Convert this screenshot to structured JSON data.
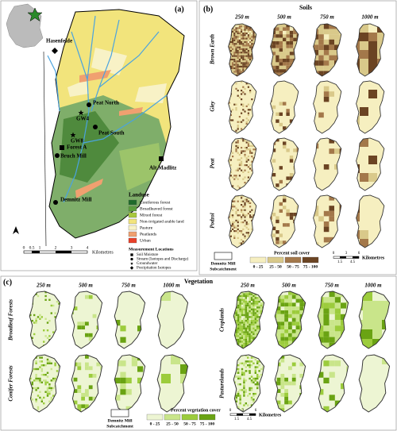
{
  "panel_a": {
    "label": "(a)",
    "places": [
      "Hasenfelde",
      "Peat North",
      "GW4",
      "Peat South",
      "GW8",
      "Forest A",
      "Bruch Mill",
      "Alt Madlitz",
      "Demnitz Mill"
    ],
    "landuse": {
      "title": "Landuse",
      "classes": [
        "Coniferous forest",
        "Broadleaved forest",
        "Mixed forest",
        "Non-irrigated arable land",
        "Pasture",
        "Peatlands",
        "Urban"
      ]
    },
    "measurement": {
      "title": "Measurement Locations",
      "items": [
        "Soil Moisture",
        "Stream (Isotopes and Discharge)",
        "Groundwater",
        "Precipitation Isotopes"
      ]
    },
    "scale": {
      "ticks": [
        "0",
        "0.5",
        "1",
        "2",
        "3",
        "4"
      ],
      "unit": "Kilometres"
    }
  },
  "panel_b": {
    "label": "(b)",
    "title": "Soils",
    "columns": [
      "250 m",
      "500 m",
      "750 m",
      "1000 m"
    ],
    "rows": [
      "Brown Earth",
      "Gley",
      "Peat",
      "Podzol"
    ],
    "legend": {
      "outline": [
        "Demnitz Mill",
        "Subcatchment"
      ],
      "title": "Percent soil cover",
      "classes": [
        "0 - 25",
        "25 - 50",
        "50 - 75",
        "75 - 100"
      ]
    },
    "scale": {
      "ticks": [
        "0",
        "1.5",
        "3",
        "4.5",
        "6"
      ],
      "unit": "Kilometres"
    }
  },
  "panel_c": {
    "label": "(c)",
    "title": "Vegetation",
    "columns": [
      "250 m",
      "500 m",
      "750 m",
      "1000 m"
    ],
    "rows_left": [
      "Broadleaf Forests",
      "Conifer Forests"
    ],
    "rows_right": [
      "Croplands",
      "Pasturelands"
    ],
    "legend": {
      "outline": [
        "Demnitz Mill",
        "Subcatchment"
      ],
      "title": "Percent vegetation cover",
      "classes": [
        "0 - 25",
        "25 - 50",
        "50 - 75",
        "75 - 100"
      ]
    },
    "scale": {
      "ticks": [
        "0",
        "1.5",
        "3",
        "4.5",
        "6"
      ],
      "unit": "Kilometres"
    }
  }
}
